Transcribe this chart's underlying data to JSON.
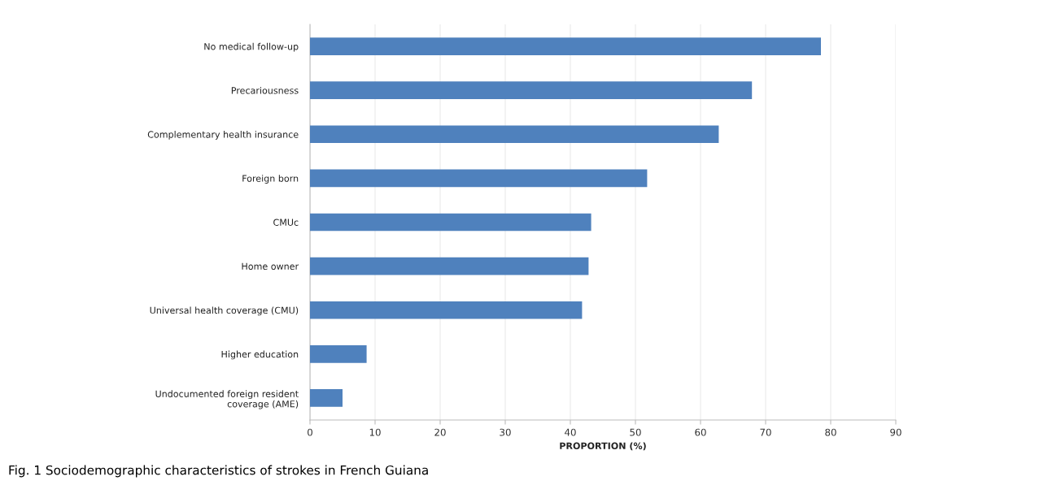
{
  "chart_data": {
    "type": "bar",
    "orientation": "horizontal",
    "xlabel": "PROPORTION (%)",
    "categories": [
      "No medical follow-up",
      "Precariousness",
      "Complementary health insurance",
      "Foreign born",
      "CMUc",
      "Home owner",
      "Universal health coverage (CMU)",
      "Higher education",
      "Undocumented foreign resident\ncoverage (AME)"
    ],
    "values": [
      78.5,
      67.9,
      62.8,
      51.8,
      43.2,
      42.8,
      41.8,
      8.7,
      5.0
    ],
    "color": "#4f81bd",
    "xlim": [
      0,
      90
    ],
    "xticks": [
      0,
      10,
      20,
      30,
      40,
      50,
      60,
      70,
      80,
      90
    ],
    "grid": "x",
    "annotations": [
      "Fig. 1 Sociodemographic characteristics of strokes in French Guiana"
    ]
  }
}
